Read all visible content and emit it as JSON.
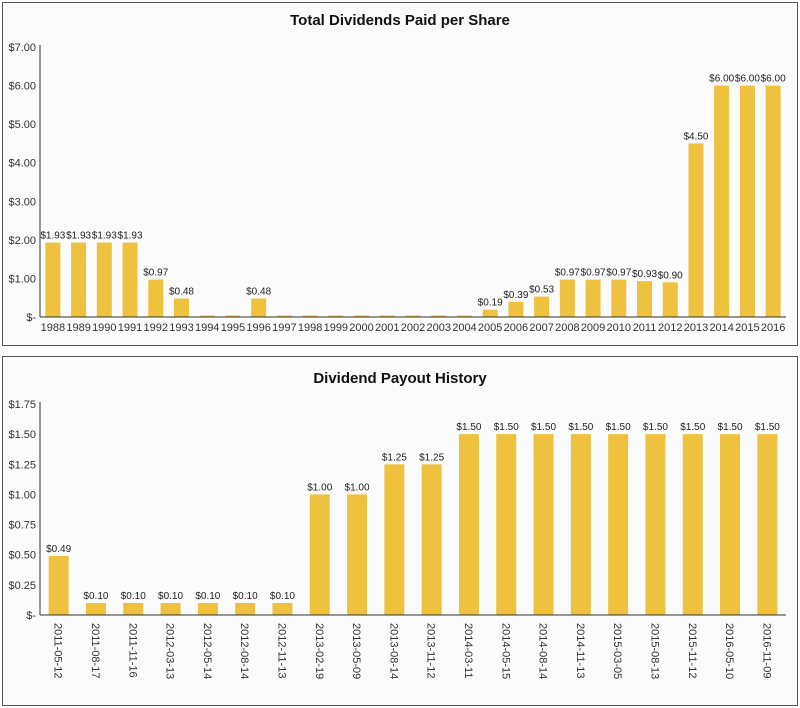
{
  "colors": {
    "bar": "#EEC13F",
    "axis": "#333333"
  },
  "chart_data": [
    {
      "type": "bar",
      "title": "Total Dividends Paid per Share",
      "categories": [
        "1988",
        "1989",
        "1990",
        "1991",
        "1992",
        "1993",
        "1994",
        "1995",
        "1996",
        "1997",
        "1998",
        "1999",
        "2000",
        "2001",
        "2002",
        "2003",
        "2004",
        "2005",
        "2006",
        "2007",
        "2008",
        "2009",
        "2010",
        "2011",
        "2012",
        "2013",
        "2014",
        "2015",
        "2016"
      ],
      "values": [
        1.93,
        1.93,
        1.93,
        1.93,
        0.97,
        0.48,
        0,
        0,
        0.48,
        0,
        0,
        0,
        0,
        0,
        0,
        0,
        0,
        0.19,
        0.39,
        0.53,
        0.97,
        0.97,
        0.97,
        0.93,
        0.9,
        4.5,
        6.0,
        6.0,
        6.0
      ],
      "data_labels": [
        "$1.93",
        "$1.93",
        "$1.93",
        "$1.93",
        "$0.97",
        "$0.48",
        "",
        "",
        "$0.48",
        "",
        "",
        "",
        "",
        "",
        "",
        "",
        "",
        "$0.19",
        "$0.39",
        "$0.53",
        "$0.97",
        "$0.97",
        "$0.97",
        "$0.93",
        "$0.90",
        "$4.50",
        "$6.00",
        "$6.00",
        "$6.00"
      ],
      "yticks": [
        0,
        1,
        2,
        3,
        4,
        5,
        6,
        7
      ],
      "ytick_labels": [
        "$-",
        "$1.00",
        "$2.00",
        "$3.00",
        "$4.00",
        "$5.00",
        "$6.00",
        "$7.00"
      ],
      "ylim": [
        0,
        7
      ],
      "grid": false,
      "xlabel": "",
      "ylabel": ""
    },
    {
      "type": "bar",
      "title": "Dividend Payout History",
      "categories": [
        "2011-05-12",
        "2011-08-17",
        "2011-11-16",
        "2012-03-13",
        "2012-05-14",
        "2012-08-14",
        "2012-11-13",
        "2013-02-19",
        "2013-05-09",
        "2013-08-14",
        "2013-11-12",
        "2014-03-11",
        "2014-05-15",
        "2014-08-14",
        "2014-11-13",
        "2015-03-05",
        "2015-08-13",
        "2015-11-12",
        "2016-05-10",
        "2016-11-09"
      ],
      "values": [
        0.49,
        0.1,
        0.1,
        0.1,
        0.1,
        0.1,
        0.1,
        1.0,
        1.0,
        1.25,
        1.25,
        1.5,
        1.5,
        1.5,
        1.5,
        1.5,
        1.5,
        1.5,
        1.5,
        1.5
      ],
      "data_labels": [
        "$0.49",
        "$0.10",
        "$0.10",
        "$0.10",
        "$0.10",
        "$0.10",
        "$0.10",
        "$1.00",
        "$1.00",
        "$1.25",
        "$1.25",
        "$1.50",
        "$1.50",
        "$1.50",
        "$1.50",
        "$1.50",
        "$1.50",
        "$1.50",
        "$1.50",
        "$1.50"
      ],
      "yticks": [
        0,
        0.25,
        0.5,
        0.75,
        1,
        1.25,
        1.5,
        1.75
      ],
      "ytick_labels": [
        "$-",
        "$0.25",
        "$0.50",
        "$0.75",
        "$1.00",
        "$1.25",
        "$1.50",
        "$1.75"
      ],
      "ylim": [
        0,
        1.75
      ],
      "grid": false,
      "xlabel": "",
      "ylabel": ""
    }
  ]
}
